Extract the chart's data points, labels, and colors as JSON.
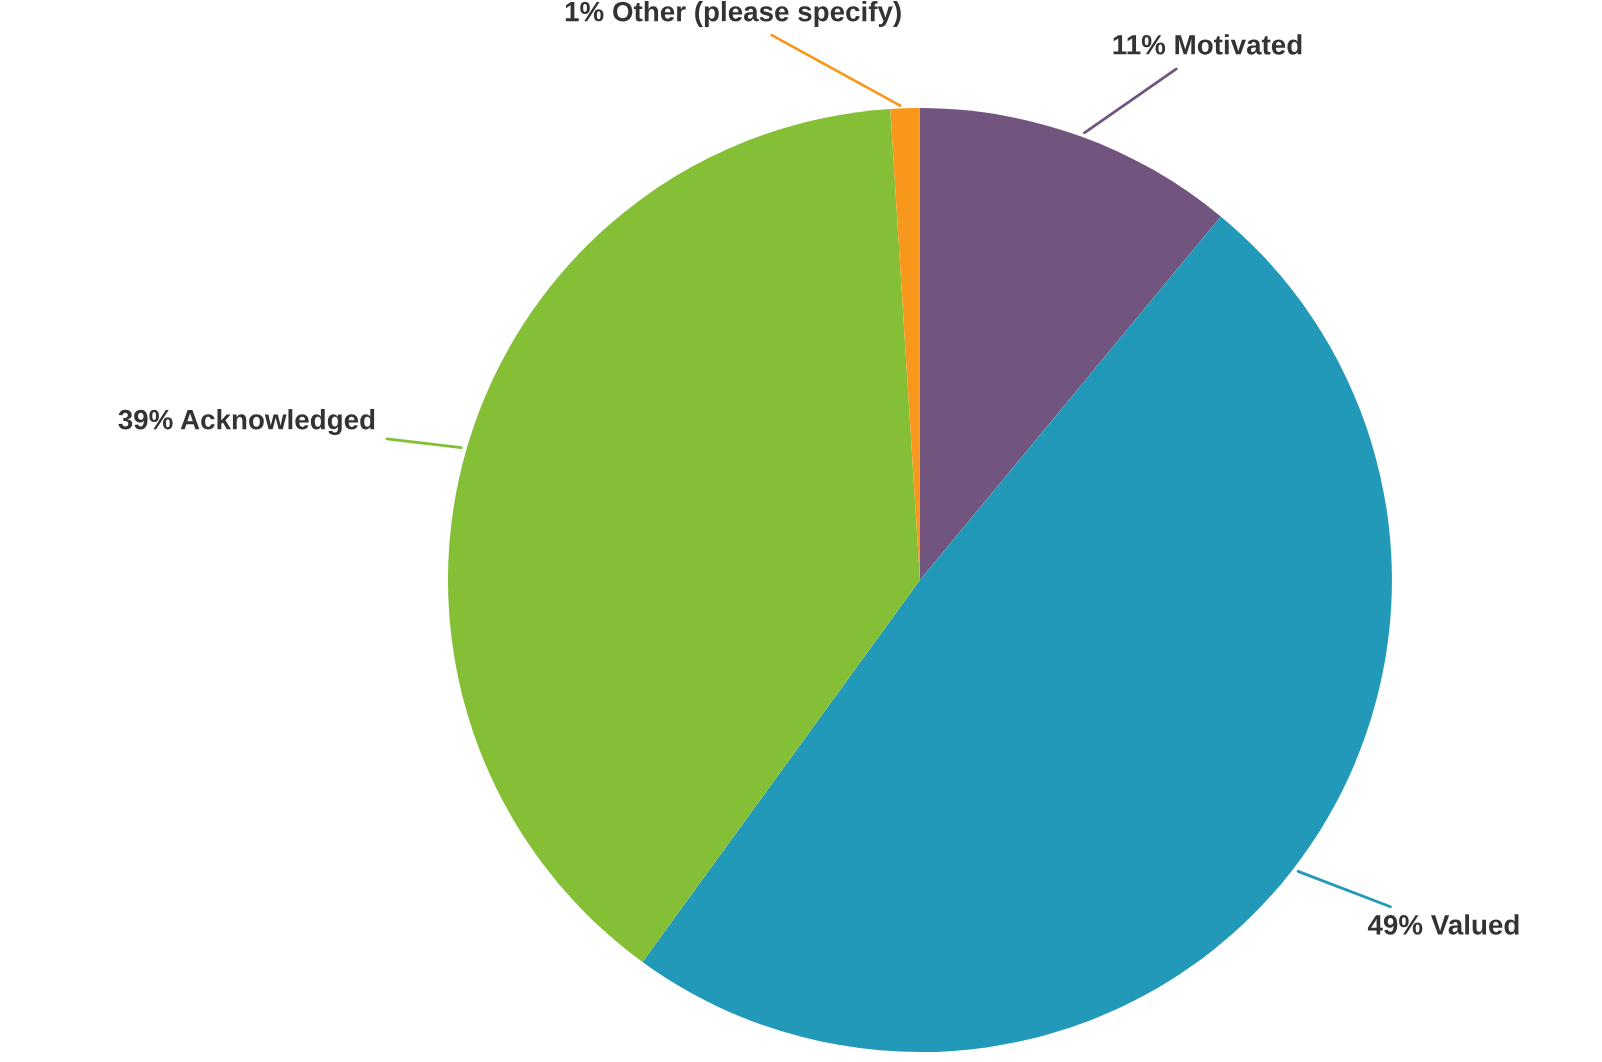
{
  "chart_data": {
    "type": "pie",
    "categories": [
      "Motivated",
      "Valued",
      "Acknowledged",
      "Other (please specify)"
    ],
    "values": [
      11,
      49,
      39,
      1
    ],
    "value_labels": [
      "11%",
      "49%",
      "39%",
      "1%"
    ],
    "colors": [
      "#72557f",
      "#2299b8",
      "#84bf36",
      "#f7981d"
    ],
    "legend": false
  }
}
